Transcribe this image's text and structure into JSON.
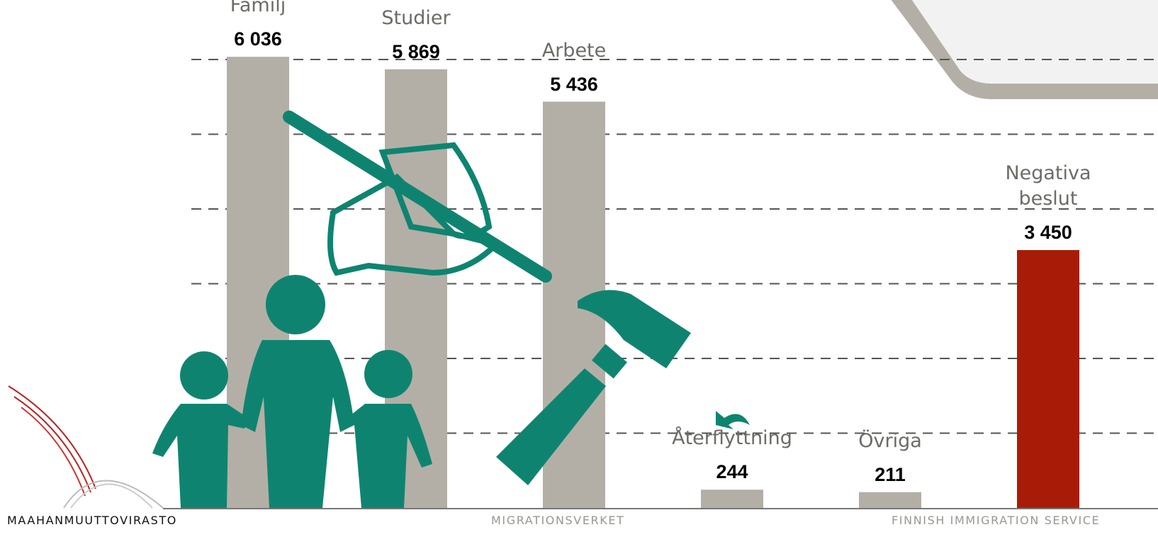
{
  "chart_data": {
    "type": "bar",
    "categories": [
      "Familj",
      "Studier",
      "Arbete",
      "Återflyttning",
      "Övriga",
      "Negativa beslut"
    ],
    "values": [
      6036,
      5869,
      5436,
      244,
      211,
      3450
    ],
    "value_labels": [
      "6 036",
      "5 869",
      "5 436",
      "244",
      "211",
      "3 450"
    ],
    "colors": [
      "#b3afa6",
      "#b3afa6",
      "#b3afa6",
      "#b3afa6",
      "#b3afa6",
      "#a81c07"
    ],
    "ylim": [
      0,
      6000
    ],
    "yticks": [
      1000,
      2000,
      3000,
      4000,
      5000,
      6000
    ],
    "grid": true
  },
  "footer": {
    "left": "MAAHANMUUTTOVIRASTO",
    "center": "MIGRATIONSVERKET",
    "right": "FINNISH IMMIGRATION SERVICE"
  }
}
